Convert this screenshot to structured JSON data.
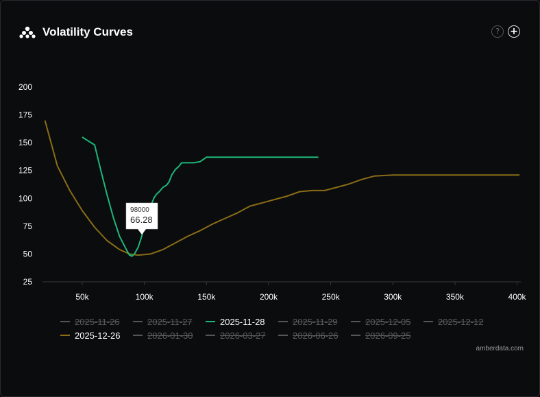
{
  "widget": {
    "title": "Volatility Curves",
    "help_icon": "?",
    "add_icon": "+"
  },
  "credit": "amberdata.com",
  "tooltip": {
    "strike": "98000",
    "value": "66.28"
  },
  "colors": {
    "green": "#1db87a",
    "gold": "#8a6d15",
    "inactive": "#555555"
  },
  "legend": [
    {
      "label": "2025-11-26",
      "active": false
    },
    {
      "label": "2025-11-27",
      "active": false
    },
    {
      "label": "2025-11-28",
      "active": true,
      "color": "#1db87a"
    },
    {
      "label": "2025-11-29",
      "active": false
    },
    {
      "label": "2025-12-05",
      "active": false
    },
    {
      "label": "2025-12-12",
      "active": false
    },
    {
      "label": "2025-12-26",
      "active": true,
      "color": "#8a6d15"
    },
    {
      "label": "2026-01-30",
      "active": false
    },
    {
      "label": "2026-03-27",
      "active": false
    },
    {
      "label": "2026-06-26",
      "active": false
    },
    {
      "label": "2026-09-25",
      "active": false
    }
  ],
  "chart_data": {
    "type": "line",
    "title": "Volatility Curves",
    "xlabel": "",
    "ylabel": "",
    "xlim": [
      18000,
      403000
    ],
    "ylim": [
      25,
      200
    ],
    "x_ticks": [
      50000,
      100000,
      150000,
      200000,
      250000,
      300000,
      350000,
      400000
    ],
    "x_tick_labels": [
      "50k",
      "100k",
      "150k",
      "200k",
      "250k",
      "300k",
      "350k",
      "400k"
    ],
    "y_ticks": [
      25,
      50,
      75,
      100,
      125,
      150,
      175,
      200
    ],
    "y_tick_labels": [
      "25",
      "50",
      "75",
      "100",
      "125",
      "150",
      "175",
      "200"
    ],
    "grid": false,
    "legend_position": "bottom",
    "series": [
      {
        "name": "2025-11-28",
        "color": "#1db87a",
        "points": [
          [
            50000,
            155
          ],
          [
            60000,
            148
          ],
          [
            65000,
            125
          ],
          [
            70000,
            103
          ],
          [
            75000,
            83
          ],
          [
            80000,
            66
          ],
          [
            85000,
            55
          ],
          [
            88000,
            49
          ],
          [
            90000,
            48
          ],
          [
            92000,
            50
          ],
          [
            95000,
            56
          ],
          [
            98000,
            66.28
          ],
          [
            100000,
            75
          ],
          [
            102000,
            83
          ],
          [
            105000,
            93
          ],
          [
            108000,
            101
          ],
          [
            110000,
            104
          ],
          [
            112000,
            106
          ],
          [
            115000,
            110
          ],
          [
            118000,
            112
          ],
          [
            120000,
            115
          ],
          [
            122000,
            121
          ],
          [
            125000,
            126
          ],
          [
            128000,
            129
          ],
          [
            130000,
            132
          ],
          [
            135000,
            132
          ],
          [
            140000,
            132
          ],
          [
            145000,
            133
          ],
          [
            150000,
            137
          ],
          [
            160000,
            137
          ],
          [
            180000,
            137
          ],
          [
            200000,
            137
          ],
          [
            220000,
            137
          ],
          [
            240000,
            137
          ]
        ]
      },
      {
        "name": "2025-12-26",
        "color": "#8a6d15",
        "points": [
          [
            20000,
            170
          ],
          [
            30000,
            129
          ],
          [
            40000,
            107
          ],
          [
            50000,
            89
          ],
          [
            60000,
            74
          ],
          [
            70000,
            62
          ],
          [
            80000,
            54
          ],
          [
            88000,
            50
          ],
          [
            95000,
            49
          ],
          [
            105000,
            50
          ],
          [
            115000,
            54
          ],
          [
            125000,
            60
          ],
          [
            135000,
            66
          ],
          [
            145000,
            71
          ],
          [
            155000,
            77
          ],
          [
            165000,
            82
          ],
          [
            175000,
            87
          ],
          [
            185000,
            93
          ],
          [
            195000,
            96
          ],
          [
            205000,
            99
          ],
          [
            215000,
            102
          ],
          [
            225000,
            106
          ],
          [
            235000,
            107
          ],
          [
            245000,
            107
          ],
          [
            255000,
            110
          ],
          [
            265000,
            113
          ],
          [
            275000,
            117
          ],
          [
            285000,
            120
          ],
          [
            300000,
            121
          ],
          [
            320000,
            121
          ],
          [
            350000,
            121
          ],
          [
            380000,
            121
          ],
          [
            402000,
            121
          ]
        ]
      }
    ]
  }
}
